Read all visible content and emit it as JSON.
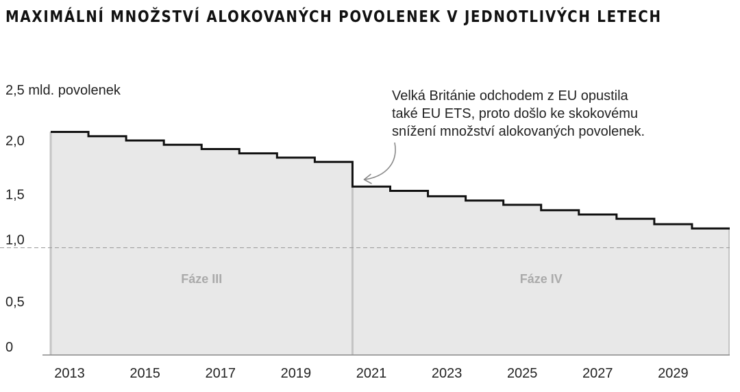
{
  "title": "MAXIMÁLNÍ MNOŽSTVÍ ALOKOVANÝCH POVOLENEK V JEDNOTLIVÝCH LETECH",
  "chart_data": {
    "type": "area",
    "step": true,
    "title": "MAXIMÁLNÍ MNOŽSTVÍ ALOKOVANÝCH POVOLENEK V JEDNOTLIVÝCH LETECH",
    "ylabel": "2,5 mld. povolenek",
    "xlim": [
      2013,
      2031
    ],
    "ylim": [
      0,
      2.5
    ],
    "y_ticks": [
      {
        "value": 0,
        "label": "0"
      },
      {
        "value": 0.5,
        "label": "0,5"
      },
      {
        "value": 1.0,
        "label": "1,0"
      },
      {
        "value": 1.5,
        "label": "1,5"
      },
      {
        "value": 2.0,
        "label": "2,0"
      }
    ],
    "x_ticks": [
      {
        "value": 2013,
        "label": "2013"
      },
      {
        "value": 2015,
        "label": "2015"
      },
      {
        "value": 2017,
        "label": "2017"
      },
      {
        "value": 2019,
        "label": "2019"
      },
      {
        "value": 2021,
        "label": "2021"
      },
      {
        "value": 2023,
        "label": "2023"
      },
      {
        "value": 2025,
        "label": "2025"
      },
      {
        "value": 2027,
        "label": "2027"
      },
      {
        "value": 2029,
        "label": "2029"
      }
    ],
    "series": [
      {
        "x": [
          2013,
          2014,
          2015,
          2016,
          2017,
          2018,
          2019,
          2020,
          2021,
          2022,
          2023,
          2024,
          2025,
          2026,
          2027,
          2028,
          2029,
          2030
        ],
        "values": [
          2.08,
          2.04,
          2.0,
          1.96,
          1.92,
          1.88,
          1.84,
          1.8,
          1.57,
          1.53,
          1.48,
          1.44,
          1.4,
          1.35,
          1.31,
          1.27,
          1.22,
          1.18
        ]
      }
    ],
    "reference_line": {
      "value": 1.0,
      "style": "dashed"
    },
    "phases": [
      {
        "label": "Fáze III",
        "from": 2013,
        "to": 2021
      },
      {
        "label": "Fáze IV",
        "from": 2021,
        "to": 2031
      }
    ],
    "annotation": {
      "lines": [
        "Velká Británie odchodem z EU opustila",
        "také EU ETS, proto došlo ke skokovému",
        "snížení množství alokovaných povolenek."
      ],
      "points_to_year": 2021
    },
    "colors": {
      "line": "#111111",
      "fill": "#e8e8e8",
      "divider": "#c4c4c4",
      "phase_label": "#aaaaaa",
      "arrow": "#888888",
      "reference": "#999999"
    }
  }
}
